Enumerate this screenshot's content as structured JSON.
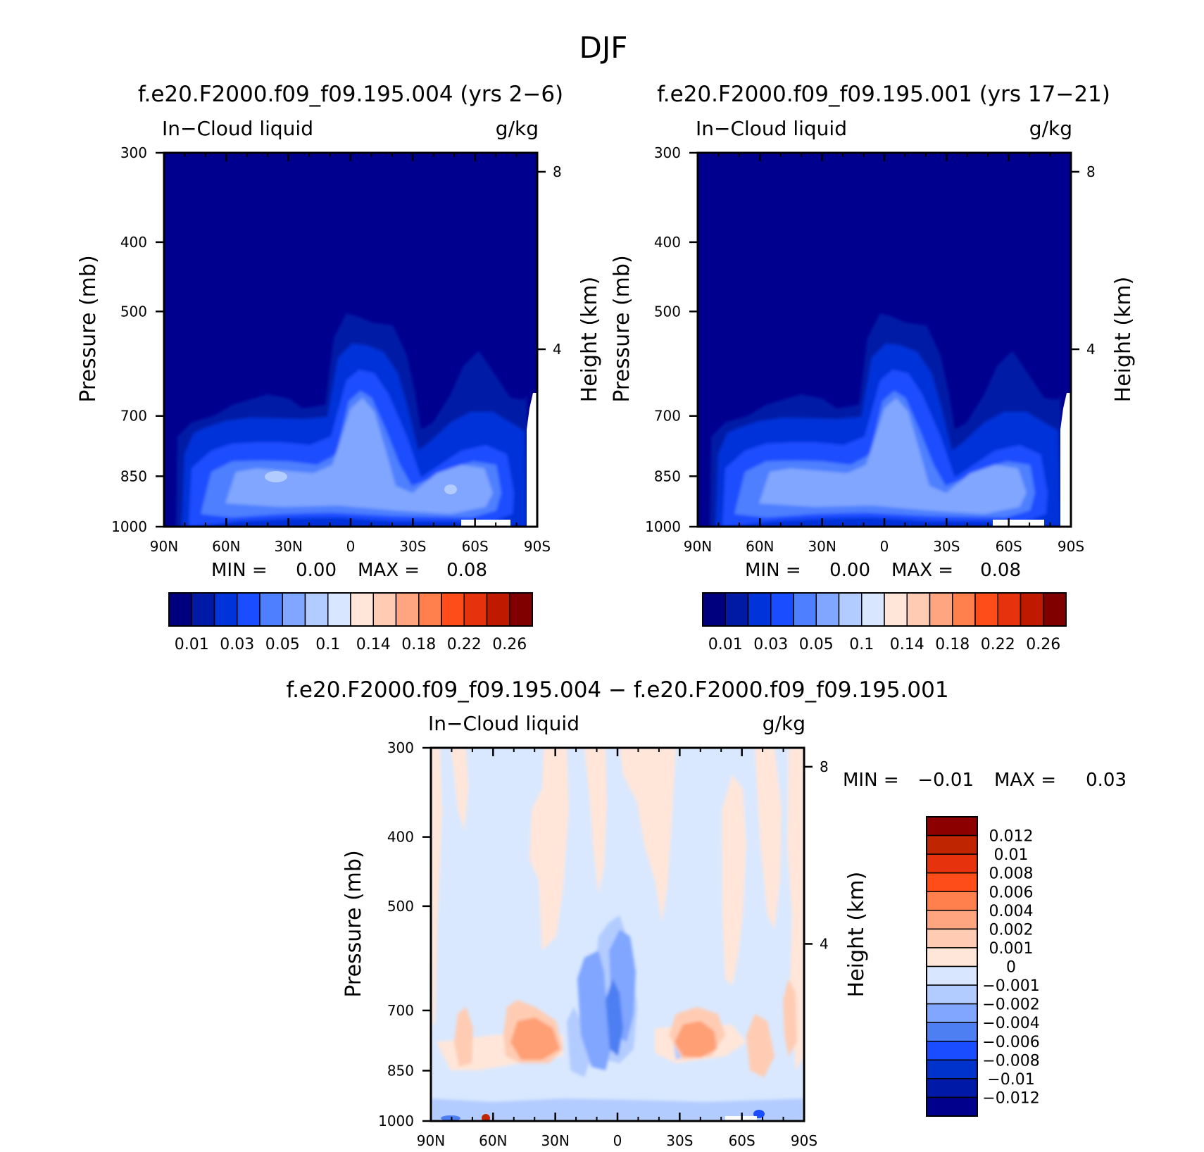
{
  "main_title": "DJF",
  "chart_data": [
    {
      "type": "contour",
      "id": "panel1",
      "title": "f.e20.F2000.f09_f09.195.004 (yrs 2−6)",
      "left_label": "In−Cloud liquid",
      "right_label": "g/kg",
      "ylabel": "Pressure (mb)",
      "ylabel_right": "Height (km)",
      "x_ticks": [
        "90N",
        "60N",
        "30N",
        "0",
        "30S",
        "60S",
        "90S"
      ],
      "x_range": [
        "90N",
        "90S"
      ],
      "y_ticks": [
        "300",
        "400",
        "500",
        "700",
        "850",
        "1000"
      ],
      "y_range": [
        1000,
        300
      ],
      "y_right_ticks": [
        "8",
        "4"
      ],
      "min_label": "MIN =",
      "min_value": "0.00",
      "max_label": "MAX =",
      "max_value": "0.08",
      "colorbar": {
        "orientation": "horizontal",
        "colors": [
          "#00007f",
          "#001aa6",
          "#0033d9",
          "#1a4dff",
          "#4d7fff",
          "#80a6ff",
          "#b3ccff",
          "#d9e6ff",
          "#ffe6d9",
          "#ffccb3",
          "#ffa680",
          "#ff7f4d",
          "#ff4d1a",
          "#e6330d",
          "#bf1a00",
          "#800000"
        ],
        "labels": [
          "0.01",
          "0.03",
          "0.05",
          "0.1",
          "0.14",
          "0.18",
          "0.22",
          "0.26"
        ]
      }
    },
    {
      "type": "contour",
      "id": "panel2",
      "title": "f.e20.F2000.f09_f09.195.001 (yrs 17−21)",
      "left_label": "In−Cloud liquid",
      "right_label": "g/kg",
      "ylabel": "Pressure (mb)",
      "ylabel_right": "Height (km)",
      "x_ticks": [
        "90N",
        "60N",
        "30N",
        "0",
        "30S",
        "60S",
        "90S"
      ],
      "x_range": [
        "90N",
        "90S"
      ],
      "y_ticks": [
        "300",
        "400",
        "500",
        "700",
        "850",
        "1000"
      ],
      "y_range": [
        1000,
        300
      ],
      "y_right_ticks": [
        "8",
        "4"
      ],
      "min_label": "MIN =",
      "min_value": "0.00",
      "max_label": "MAX =",
      "max_value": "0.08",
      "colorbar": {
        "orientation": "horizontal",
        "colors": [
          "#00007f",
          "#001aa6",
          "#0033d9",
          "#1a4dff",
          "#4d7fff",
          "#80a6ff",
          "#b3ccff",
          "#d9e6ff",
          "#ffe6d9",
          "#ffccb3",
          "#ffa680",
          "#ff7f4d",
          "#ff4d1a",
          "#e6330d",
          "#bf1a00",
          "#800000"
        ],
        "labels": [
          "0.01",
          "0.03",
          "0.05",
          "0.1",
          "0.14",
          "0.18",
          "0.22",
          "0.26"
        ]
      }
    },
    {
      "type": "contour",
      "id": "panel3",
      "title": "f.e20.F2000.f09_f09.195.004 − f.e20.F2000.f09_f09.195.001",
      "left_label": "In−Cloud liquid",
      "right_label": "g/kg",
      "ylabel": "Pressure (mb)",
      "ylabel_right": "Height (km)",
      "x_ticks": [
        "90N",
        "60N",
        "30N",
        "0",
        "30S",
        "60S",
        "90S"
      ],
      "x_range": [
        "90N",
        "90S"
      ],
      "y_ticks": [
        "300",
        "400",
        "500",
        "700",
        "850",
        "1000"
      ],
      "y_range": [
        1000,
        300
      ],
      "y_right_ticks": [
        "8",
        "4"
      ],
      "min_label": "MIN =",
      "min_value": "−0.01",
      "max_label": "MAX =",
      "max_value": "0.03",
      "colorbar": {
        "orientation": "vertical",
        "colors": [
          "#00008c",
          "#0019a6",
          "#0033cc",
          "#1a4dff",
          "#4d7ff2",
          "#80a6ff",
          "#b3ccff",
          "#d9e6ff",
          "#ffe6d9",
          "#ffccb3",
          "#ffa680",
          "#ff7f4d",
          "#ff4d1a",
          "#e6330d",
          "#bf2600",
          "#8c0000"
        ],
        "labels": [
          "0.012",
          "0.01",
          "0.008",
          "0.006",
          "0.004",
          "0.002",
          "0.001",
          "0",
          "−0.001",
          "−0.002",
          "−0.004",
          "−0.006",
          "−0.008",
          "−0.01",
          "−0.012"
        ]
      }
    }
  ]
}
